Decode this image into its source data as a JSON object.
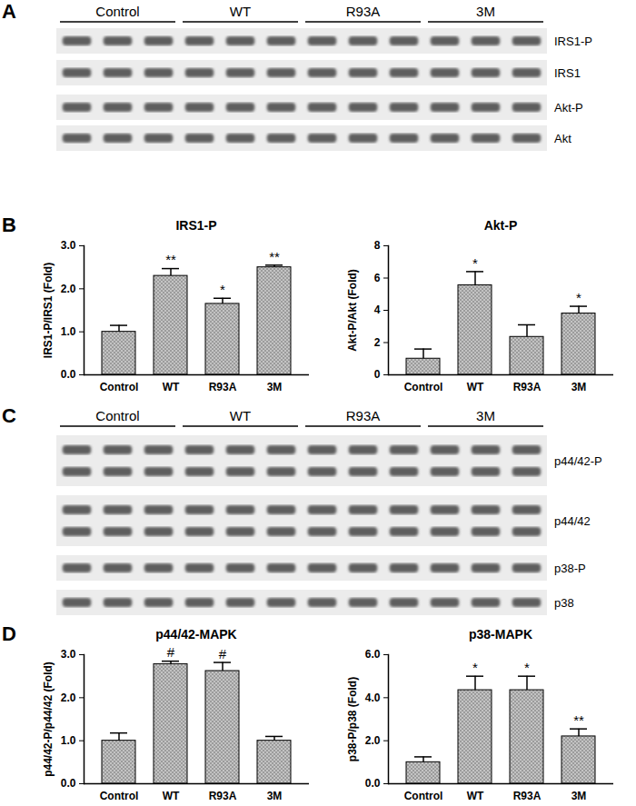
{
  "chart_data": [
    {
      "type": "bar",
      "panel": "B",
      "title": "IRS1-P",
      "y_label": "IRS1-P/IRS1 (Fold)",
      "categories": [
        "Control",
        "WT",
        "R93A",
        "3M"
      ],
      "values": [
        1.0,
        2.3,
        1.65,
        2.5
      ],
      "errors": [
        0.15,
        0.17,
        0.13,
        0.05
      ],
      "annotations": [
        null,
        "**",
        "*",
        "**"
      ],
      "color": "#9a9a9a",
      "ylim": [
        0,
        3
      ],
      "yticks": [
        0,
        1,
        2,
        3
      ]
    },
    {
      "type": "bar",
      "title": "Akt-P",
      "y_label": "Akt-P/Akt (Fold)",
      "categories": [
        "Control",
        "WT",
        "R93A",
        "3M"
      ],
      "values": [
        1.0,
        5.55,
        2.35,
        3.8
      ],
      "errors": [
        0.6,
        0.85,
        0.75,
        0.45
      ],
      "annotations": [
        null,
        "*",
        null,
        "*"
      ],
      "color": "#9a9a9a",
      "ylim": [
        0,
        8
      ],
      "yticks": [
        0,
        2,
        4,
        6,
        8
      ]
    },
    {
      "type": "bar",
      "panel": "D",
      "title": "p44/42-MAPK",
      "y_label": "p44/42-P/p44/42 (Fold)",
      "categories": [
        "Control",
        "WT",
        "R93A",
        "3M"
      ],
      "values": [
        1.0,
        2.78,
        2.62,
        1.0
      ],
      "errors": [
        0.18,
        0.07,
        0.2,
        0.1
      ],
      "annotations": [
        null,
        "#",
        "#",
        null
      ],
      "color": "#9a9a9a",
      "ylim": [
        0,
        3
      ],
      "yticks": [
        0,
        1,
        2,
        3
      ]
    },
    {
      "type": "bar",
      "title": "p38-MAPK",
      "y_label": "p38-P/p38 (Fold)",
      "categories": [
        "Control",
        "WT",
        "R93A",
        "3M"
      ],
      "values": [
        1.0,
        4.35,
        4.35,
        2.2
      ],
      "errors": [
        0.25,
        0.65,
        0.65,
        0.35
      ],
      "annotations": [
        null,
        "*",
        "*",
        "**"
      ],
      "color": "#9a9a9a",
      "ylim": [
        0,
        6
      ],
      "yticks": [
        0,
        2,
        4,
        6
      ]
    }
  ],
  "blots": [
    {
      "panel": "A",
      "groups": [
        "Control",
        "WT",
        "R93A",
        "3M"
      ],
      "lanes_per_group": 3,
      "rows": [
        {
          "label": "IRS1-P",
          "bands": 1
        },
        {
          "label": "IRS1",
          "bands": 1
        },
        {
          "label": "Akt-P",
          "bands": 1
        },
        {
          "label": "Akt",
          "bands": 1
        }
      ]
    },
    {
      "panel": "C",
      "groups": [
        "Control",
        "WT",
        "R93A",
        "3M"
      ],
      "lanes_per_group": 3,
      "rows": [
        {
          "label": "p44/42-P",
          "bands": 2
        },
        {
          "label": "p44/42",
          "bands": 2
        },
        {
          "label": "p38-P",
          "bands": 1
        },
        {
          "label": "p38",
          "bands": 1
        }
      ]
    }
  ]
}
